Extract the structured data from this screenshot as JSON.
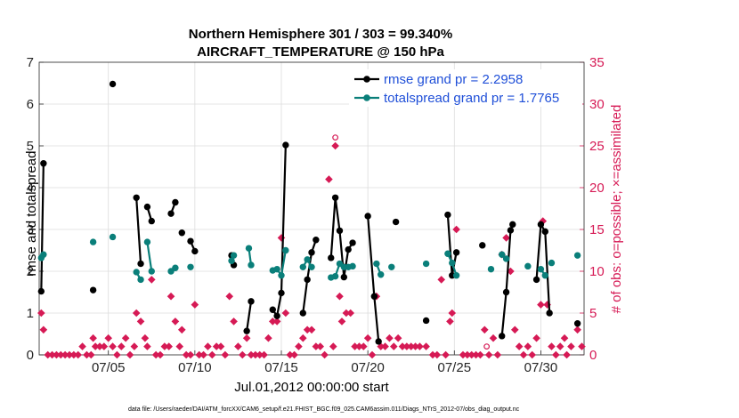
{
  "chart_data": {
    "type": "line",
    "title": "Northern Hemisphere 301 / 303 = 99.340%",
    "subtitle": "AIRCRAFT_TEMPERATURE @ 150 hPa",
    "xlabel": "Jul.01,2012 00:00:00 start",
    "ylabel": "rmse and totalspread",
    "y2label": "# of obs: o=possible; ×=assimilated",
    "xlim": [
      0.5,
      32.0
    ],
    "ylim": [
      0,
      7
    ],
    "y2lim": [
      0,
      35
    ],
    "x_ticks": [
      4.5,
      9.5,
      14.5,
      19.5,
      24.5,
      29.5
    ],
    "x_tick_labels": [
      "07/05",
      "07/10",
      "07/15",
      "07/20",
      "07/25",
      "07/30"
    ],
    "y_ticks": [
      0,
      1,
      2,
      3,
      4,
      5,
      6,
      7
    ],
    "y2_ticks": [
      0,
      5,
      10,
      15,
      20,
      25,
      30,
      35
    ],
    "grid": true,
    "legend_position": "top-right",
    "footer": "data file: /Users/raeder/DAI/ATM_forcXX/CAM6_setup/f.e21.FHIST_BGC.f09_025.CAM6assim.011/Diags_NTrS_2012-07/obs_diag_output.nc",
    "series": [
      {
        "name": "rmse grand pr = 2.2958",
        "color": "#000000",
        "segments": [
          [
            [
              0.62,
              1.52
            ],
            [
              0.75,
              4.58
            ]
          ],
          [
            [
              3.62,
              1.55
            ]
          ],
          [
            [
              4.75,
              6.48
            ]
          ],
          [
            [
              6.12,
              3.76
            ],
            [
              6.37,
              2.18
            ]
          ],
          [
            [
              6.75,
              3.54
            ],
            [
              7.0,
              3.2
            ]
          ],
          [
            [
              8.12,
              3.38
            ],
            [
              8.37,
              3.65
            ]
          ],
          [
            [
              8.75,
              2.92
            ]
          ],
          [
            [
              9.25,
              2.72
            ],
            [
              9.5,
              2.48
            ]
          ],
          [
            [
              11.62,
              2.38
            ],
            [
              11.75,
              2.15
            ]
          ],
          [
            [
              12.5,
              0.57
            ],
            [
              12.75,
              1.28
            ]
          ],
          [
            [
              14.0,
              1.08
            ],
            [
              14.25,
              0.93
            ],
            [
              14.5,
              1.48
            ],
            [
              14.75,
              5.02
            ]
          ],
          [
            [
              15.75,
              1.0
            ],
            [
              16.0,
              1.8
            ],
            [
              16.25,
              2.45
            ],
            [
              16.5,
              2.75
            ]
          ],
          [
            [
              17.37,
              2.32
            ],
            [
              17.62,
              3.76
            ],
            [
              17.87,
              2.97
            ],
            [
              18.12,
              1.86
            ],
            [
              18.37,
              2.52
            ],
            [
              18.62,
              2.68
            ]
          ],
          [
            [
              19.5,
              3.32
            ],
            [
              19.87,
              1.4
            ],
            [
              20.12,
              0.32
            ]
          ],
          [
            [
              21.12,
              3.18
            ]
          ],
          [
            [
              22.87,
              0.82
            ]
          ],
          [
            [
              24.12,
              3.35
            ],
            [
              24.37,
              1.9
            ],
            [
              24.62,
              2.45
            ]
          ],
          [
            [
              26.12,
              2.62
            ]
          ],
          [
            [
              27.25,
              0.45
            ],
            [
              27.5,
              1.5
            ],
            [
              27.75,
              2.98
            ],
            [
              27.87,
              3.12
            ]
          ],
          [
            [
              29.25,
              1.8
            ],
            [
              29.5,
              3.12
            ],
            [
              29.75,
              2.95
            ],
            [
              30.0,
              1.0
            ]
          ],
          [
            [
              31.62,
              0.75
            ]
          ]
        ]
      },
      {
        "name": "totalspread grand pr = 1.7765",
        "color": "#0a7f7a",
        "segments": [
          [
            [
              0.62,
              2.32
            ],
            [
              0.75,
              2.4
            ]
          ],
          [
            [
              3.62,
              2.7
            ]
          ],
          [
            [
              4.75,
              2.82
            ]
          ],
          [
            [
              6.12,
              1.98
            ],
            [
              6.37,
              1.8
            ]
          ],
          [
            [
              6.75,
              2.7
            ],
            [
              7.0,
              2.0
            ]
          ],
          [
            [
              8.12,
              2.0
            ],
            [
              8.37,
              2.08
            ]
          ],
          [
            [
              9.25,
              2.1
            ]
          ],
          [
            [
              11.62,
              2.25
            ],
            [
              11.75,
              2.38
            ]
          ],
          [
            [
              12.62,
              2.55
            ],
            [
              12.75,
              2.15
            ]
          ],
          [
            [
              14.0,
              2.02
            ],
            [
              14.25,
              2.05
            ],
            [
              14.5,
              1.9
            ],
            [
              14.75,
              2.5
            ]
          ],
          [
            [
              15.75,
              2.1
            ],
            [
              16.0,
              2.28
            ],
            [
              16.25,
              2.1
            ]
          ],
          [
            [
              17.37,
              1.85
            ],
            [
              17.62,
              1.88
            ],
            [
              17.87,
              2.18
            ],
            [
              18.12,
              2.1
            ],
            [
              18.37,
              2.1
            ],
            [
              18.62,
              2.12
            ]
          ],
          [
            [
              20.0,
              2.18
            ],
            [
              20.25,
              1.92
            ]
          ],
          [
            [
              20.87,
              2.1
            ]
          ],
          [
            [
              22.87,
              2.18
            ]
          ],
          [
            [
              24.12,
              2.42
            ],
            [
              24.37,
              2.2
            ],
            [
              24.62,
              1.9
            ]
          ],
          [
            [
              26.62,
              2.05
            ]
          ],
          [
            [
              27.25,
              2.4
            ],
            [
              27.5,
              2.3
            ]
          ],
          [
            [
              28.75,
              2.12
            ]
          ],
          [
            [
              29.5,
              2.05
            ],
            [
              29.75,
              1.9
            ]
          ],
          [
            [
              30.12,
              2.2
            ]
          ],
          [
            [
              31.62,
              2.38
            ]
          ]
        ]
      }
    ],
    "obs_series": {
      "name": "# of obs",
      "color": "#d61a55",
      "assimilated": [
        [
          0.62,
          5
        ],
        [
          0.75,
          3
        ],
        [
          1.0,
          0
        ],
        [
          1.25,
          0
        ],
        [
          1.5,
          0
        ],
        [
          1.75,
          0
        ],
        [
          2.0,
          0
        ],
        [
          2.25,
          0
        ],
        [
          2.5,
          0
        ],
        [
          2.75,
          0
        ],
        [
          3.0,
          1
        ],
        [
          3.25,
          0
        ],
        [
          3.5,
          0
        ],
        [
          3.62,
          2
        ],
        [
          3.75,
          1
        ],
        [
          4.0,
          1
        ],
        [
          4.25,
          1
        ],
        [
          4.5,
          2
        ],
        [
          4.75,
          1
        ],
        [
          5.0,
          0
        ],
        [
          5.25,
          1
        ],
        [
          5.5,
          2
        ],
        [
          5.75,
          0
        ],
        [
          6.0,
          1
        ],
        [
          6.12,
          5
        ],
        [
          6.37,
          4
        ],
        [
          6.62,
          2
        ],
        [
          6.75,
          1
        ],
        [
          7.0,
          9
        ],
        [
          7.25,
          0
        ],
        [
          7.5,
          0
        ],
        [
          7.75,
          1
        ],
        [
          8.0,
          1
        ],
        [
          8.12,
          7
        ],
        [
          8.37,
          4
        ],
        [
          8.62,
          1
        ],
        [
          8.75,
          3
        ],
        [
          9.0,
          0
        ],
        [
          9.25,
          0
        ],
        [
          9.5,
          6
        ],
        [
          9.75,
          0
        ],
        [
          10.0,
          0
        ],
        [
          10.25,
          1
        ],
        [
          10.5,
          0
        ],
        [
          10.75,
          1
        ],
        [
          11.0,
          1
        ],
        [
          11.25,
          0
        ],
        [
          11.5,
          7
        ],
        [
          11.75,
          4
        ],
        [
          12.0,
          1
        ],
        [
          12.25,
          0
        ],
        [
          12.5,
          2
        ],
        [
          12.75,
          0
        ],
        [
          13.0,
          0
        ],
        [
          13.25,
          0
        ],
        [
          13.5,
          0
        ],
        [
          13.75,
          2
        ],
        [
          14.0,
          4
        ],
        [
          14.25,
          4
        ],
        [
          14.5,
          14
        ],
        [
          14.75,
          5
        ],
        [
          15.0,
          0
        ],
        [
          15.25,
          0
        ],
        [
          15.5,
          1
        ],
        [
          15.75,
          2
        ],
        [
          16.0,
          3
        ],
        [
          16.25,
          3
        ],
        [
          16.5,
          1
        ],
        [
          16.75,
          1
        ],
        [
          17.0,
          0
        ],
        [
          17.25,
          21
        ],
        [
          17.5,
          1
        ],
        [
          17.62,
          25
        ],
        [
          17.87,
          7
        ],
        [
          18.0,
          4
        ],
        [
          18.25,
          5
        ],
        [
          18.5,
          5
        ],
        [
          18.75,
          1
        ],
        [
          19.0,
          1
        ],
        [
          19.25,
          1
        ],
        [
          19.5,
          2
        ],
        [
          19.75,
          0
        ],
        [
          20.0,
          7
        ],
        [
          20.25,
          1
        ],
        [
          20.5,
          1
        ],
        [
          20.75,
          2
        ],
        [
          21.0,
          1
        ],
        [
          21.25,
          2
        ],
        [
          21.5,
          1
        ],
        [
          21.75,
          1
        ],
        [
          22.0,
          1
        ],
        [
          22.25,
          1
        ],
        [
          22.5,
          1
        ],
        [
          22.87,
          1
        ],
        [
          23.25,
          0
        ],
        [
          23.5,
          0
        ],
        [
          23.75,
          9
        ],
        [
          24.0,
          0
        ],
        [
          24.25,
          4
        ],
        [
          24.37,
          5
        ],
        [
          24.62,
          15
        ],
        [
          25.0,
          0
        ],
        [
          25.25,
          0
        ],
        [
          25.5,
          0
        ],
        [
          25.75,
          0
        ],
        [
          26.0,
          0
        ],
        [
          26.25,
          3
        ],
        [
          26.5,
          0
        ],
        [
          26.75,
          2
        ],
        [
          27.0,
          0
        ],
        [
          27.25,
          12
        ],
        [
          27.5,
          14
        ],
        [
          27.75,
          10
        ],
        [
          28.0,
          3
        ],
        [
          28.25,
          1
        ],
        [
          28.5,
          0
        ],
        [
          28.75,
          1
        ],
        [
          29.0,
          0
        ],
        [
          29.25,
          2
        ],
        [
          29.5,
          6
        ],
        [
          29.62,
          16
        ],
        [
          29.87,
          6
        ],
        [
          30.12,
          1
        ],
        [
          30.37,
          0
        ],
        [
          30.62,
          1
        ],
        [
          30.87,
          2
        ],
        [
          31.0,
          0
        ],
        [
          31.25,
          1
        ],
        [
          31.62,
          3
        ],
        [
          31.87,
          1
        ]
      ],
      "possible": [
        [
          17.62,
          26
        ],
        [
          26.37,
          1
        ]
      ]
    }
  }
}
